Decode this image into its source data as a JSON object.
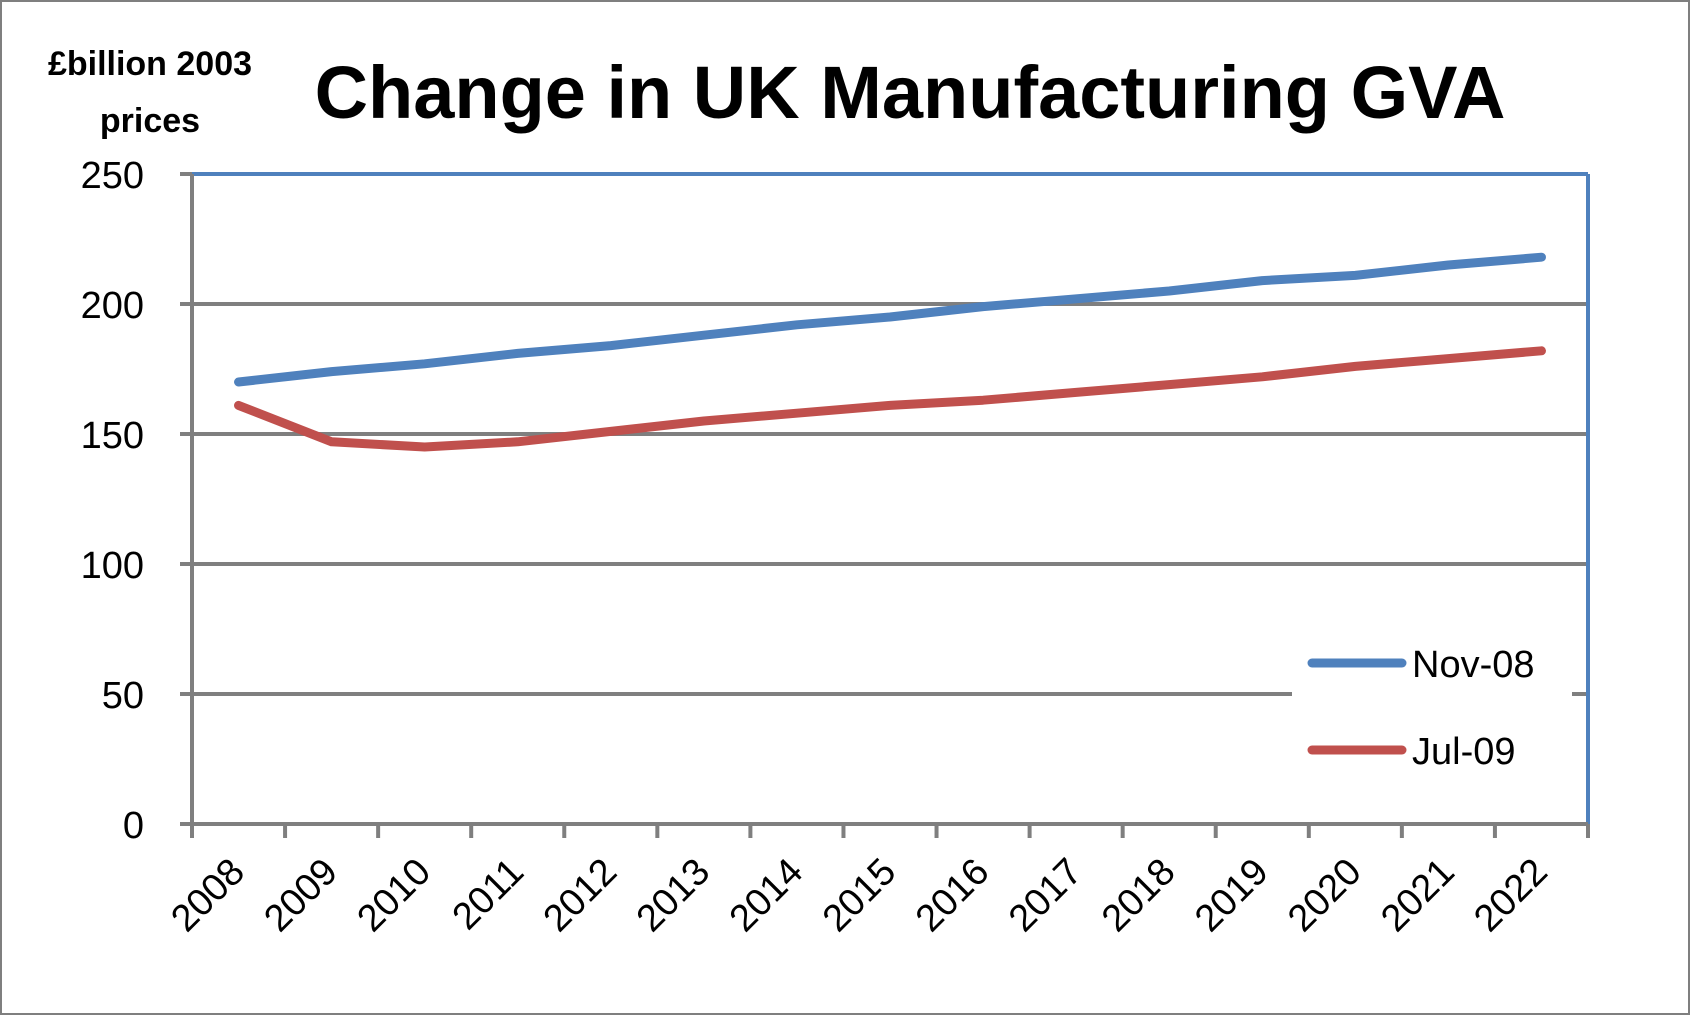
{
  "chart_data": {
    "type": "line",
    "title": "Change in UK Manufacturing GVA",
    "ylabel_lines": [
      "£billion 2003",
      "prices"
    ],
    "xlabel": "",
    "categories": [
      "2008",
      "2009",
      "2010",
      "2011",
      "2012",
      "2013",
      "2014",
      "2015",
      "2016",
      "2017",
      "2018",
      "2019",
      "2020",
      "2021",
      "2022"
    ],
    "ylim": [
      0,
      250
    ],
    "yticks": [
      0,
      50,
      100,
      150,
      200,
      250
    ],
    "grid": true,
    "legend_position": "bottom-right",
    "series": [
      {
        "name": "Nov-08",
        "color": "#4f81bd",
        "values": [
          170,
          174,
          177,
          181,
          184,
          188,
          192,
          195,
          199,
          202,
          205,
          209,
          211,
          215,
          218
        ]
      },
      {
        "name": "Jul-09",
        "color": "#c0504d",
        "values": [
          161,
          147,
          145,
          147,
          151,
          155,
          158,
          161,
          163,
          166,
          169,
          172,
          176,
          179,
          182
        ]
      }
    ]
  },
  "colors": {
    "frame": "#7f7f7f",
    "gridline": "#7f7f7f",
    "plot_border_accent": "#4f81bd"
  }
}
